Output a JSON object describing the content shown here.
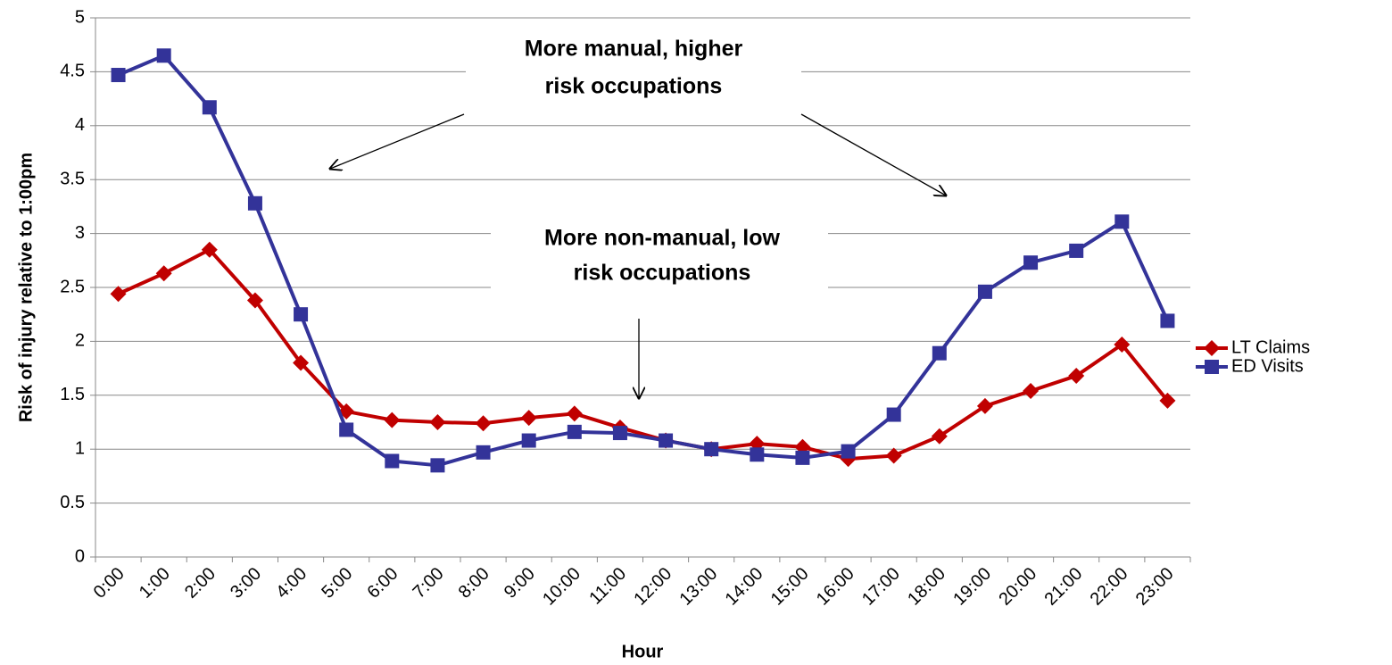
{
  "chart_data": {
    "type": "line",
    "y_label": "Risk of injury relative to 1:00pm",
    "x_label": "Hour",
    "categories": [
      "0:00",
      "1:00",
      "2:00",
      "3:00",
      "4:00",
      "5:00",
      "6:00",
      "7:00",
      "8:00",
      "9:00",
      "10:00",
      "11:00",
      "12:00",
      "13:00",
      "14:00",
      "15:00",
      "16:00",
      "17:00",
      "18:00",
      "19:00",
      "20:00",
      "21:00",
      "22:00",
      "23:00"
    ],
    "series": [
      {
        "name": "LT Claims",
        "color": "#c00000",
        "marker": "diamond",
        "values": [
          2.44,
          2.63,
          2.85,
          2.38,
          1.8,
          1.35,
          1.27,
          1.25,
          1.24,
          1.29,
          1.33,
          1.2,
          1.08,
          1.0,
          1.05,
          1.02,
          0.91,
          0.94,
          1.12,
          1.4,
          1.54,
          1.68,
          1.97,
          1.45
        ]
      },
      {
        "name": "ED Visits",
        "color": "#333399",
        "marker": "square",
        "values": [
          4.47,
          4.65,
          4.17,
          3.28,
          2.25,
          1.18,
          0.89,
          0.85,
          0.97,
          1.08,
          1.16,
          1.15,
          1.08,
          1.0,
          0.95,
          0.92,
          0.98,
          1.32,
          1.89,
          2.46,
          2.73,
          2.84,
          3.11,
          2.19
        ]
      }
    ],
    "ylim": [
      0,
      5
    ],
    "yticks": [
      0,
      0.5,
      1,
      1.5,
      2,
      2.5,
      3,
      3.5,
      4,
      4.5,
      5
    ],
    "grid": true,
    "legend": "right",
    "annotations": [
      {
        "lines": [
          "More manual, higher",
          "risk occupations"
        ]
      },
      {
        "lines": [
          "More non-manual, low",
          "risk occupations"
        ]
      }
    ]
  }
}
